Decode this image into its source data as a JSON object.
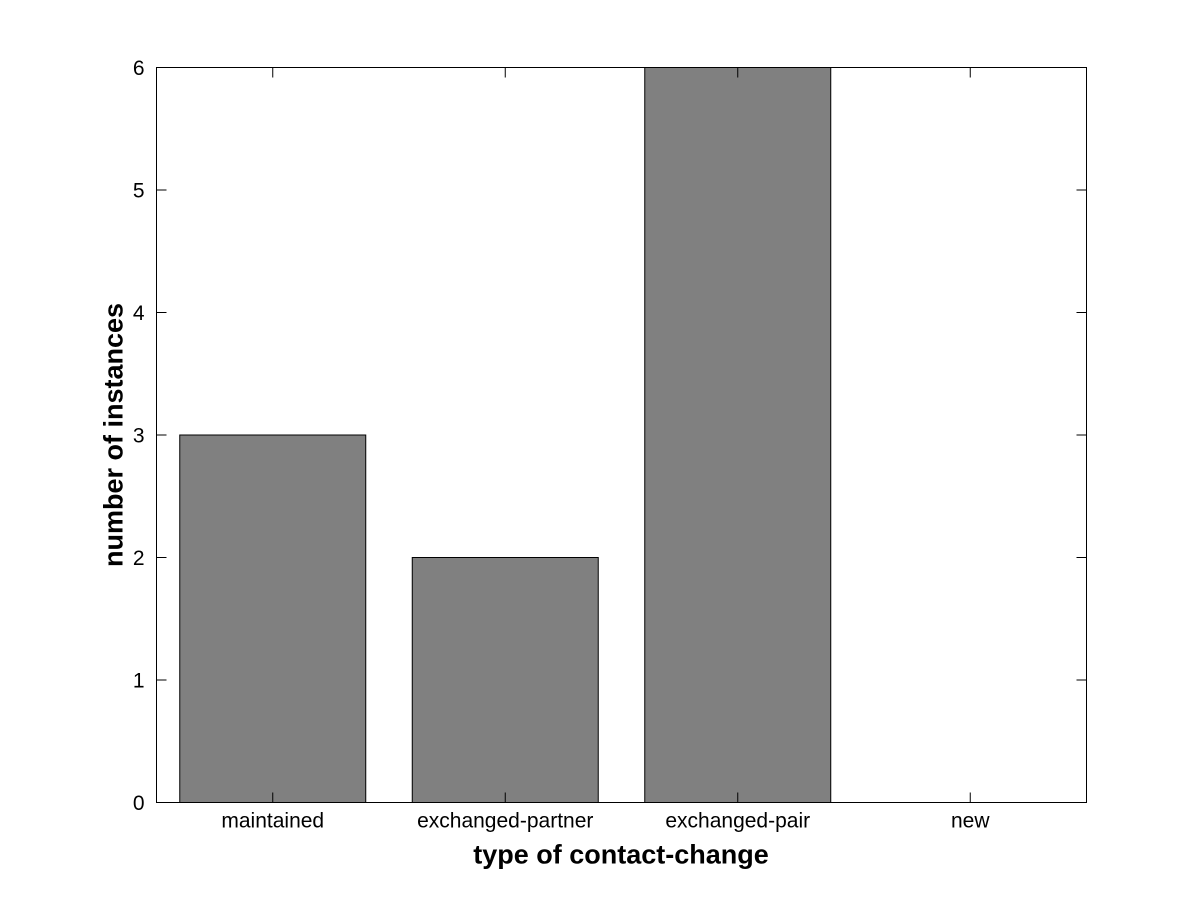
{
  "chart_data": {
    "type": "bar",
    "categories": [
      "maintained",
      "exchanged-partner",
      "exchanged-pair",
      "new"
    ],
    "values": [
      3,
      2,
      6,
      0
    ],
    "title": "",
    "xlabel": "type of contact-change",
    "ylabel": "number of instances",
    "ylim": [
      0,
      6
    ],
    "yticks": [
      0,
      1,
      2,
      3,
      4,
      5,
      6
    ],
    "bar_width_fraction": 0.8,
    "grid": false,
    "legend": null,
    "colors": {
      "bar_fill": "#808080",
      "bar_edge": "#000000",
      "axis": "#000000",
      "background": "#ffffff",
      "text": "#000000"
    }
  }
}
